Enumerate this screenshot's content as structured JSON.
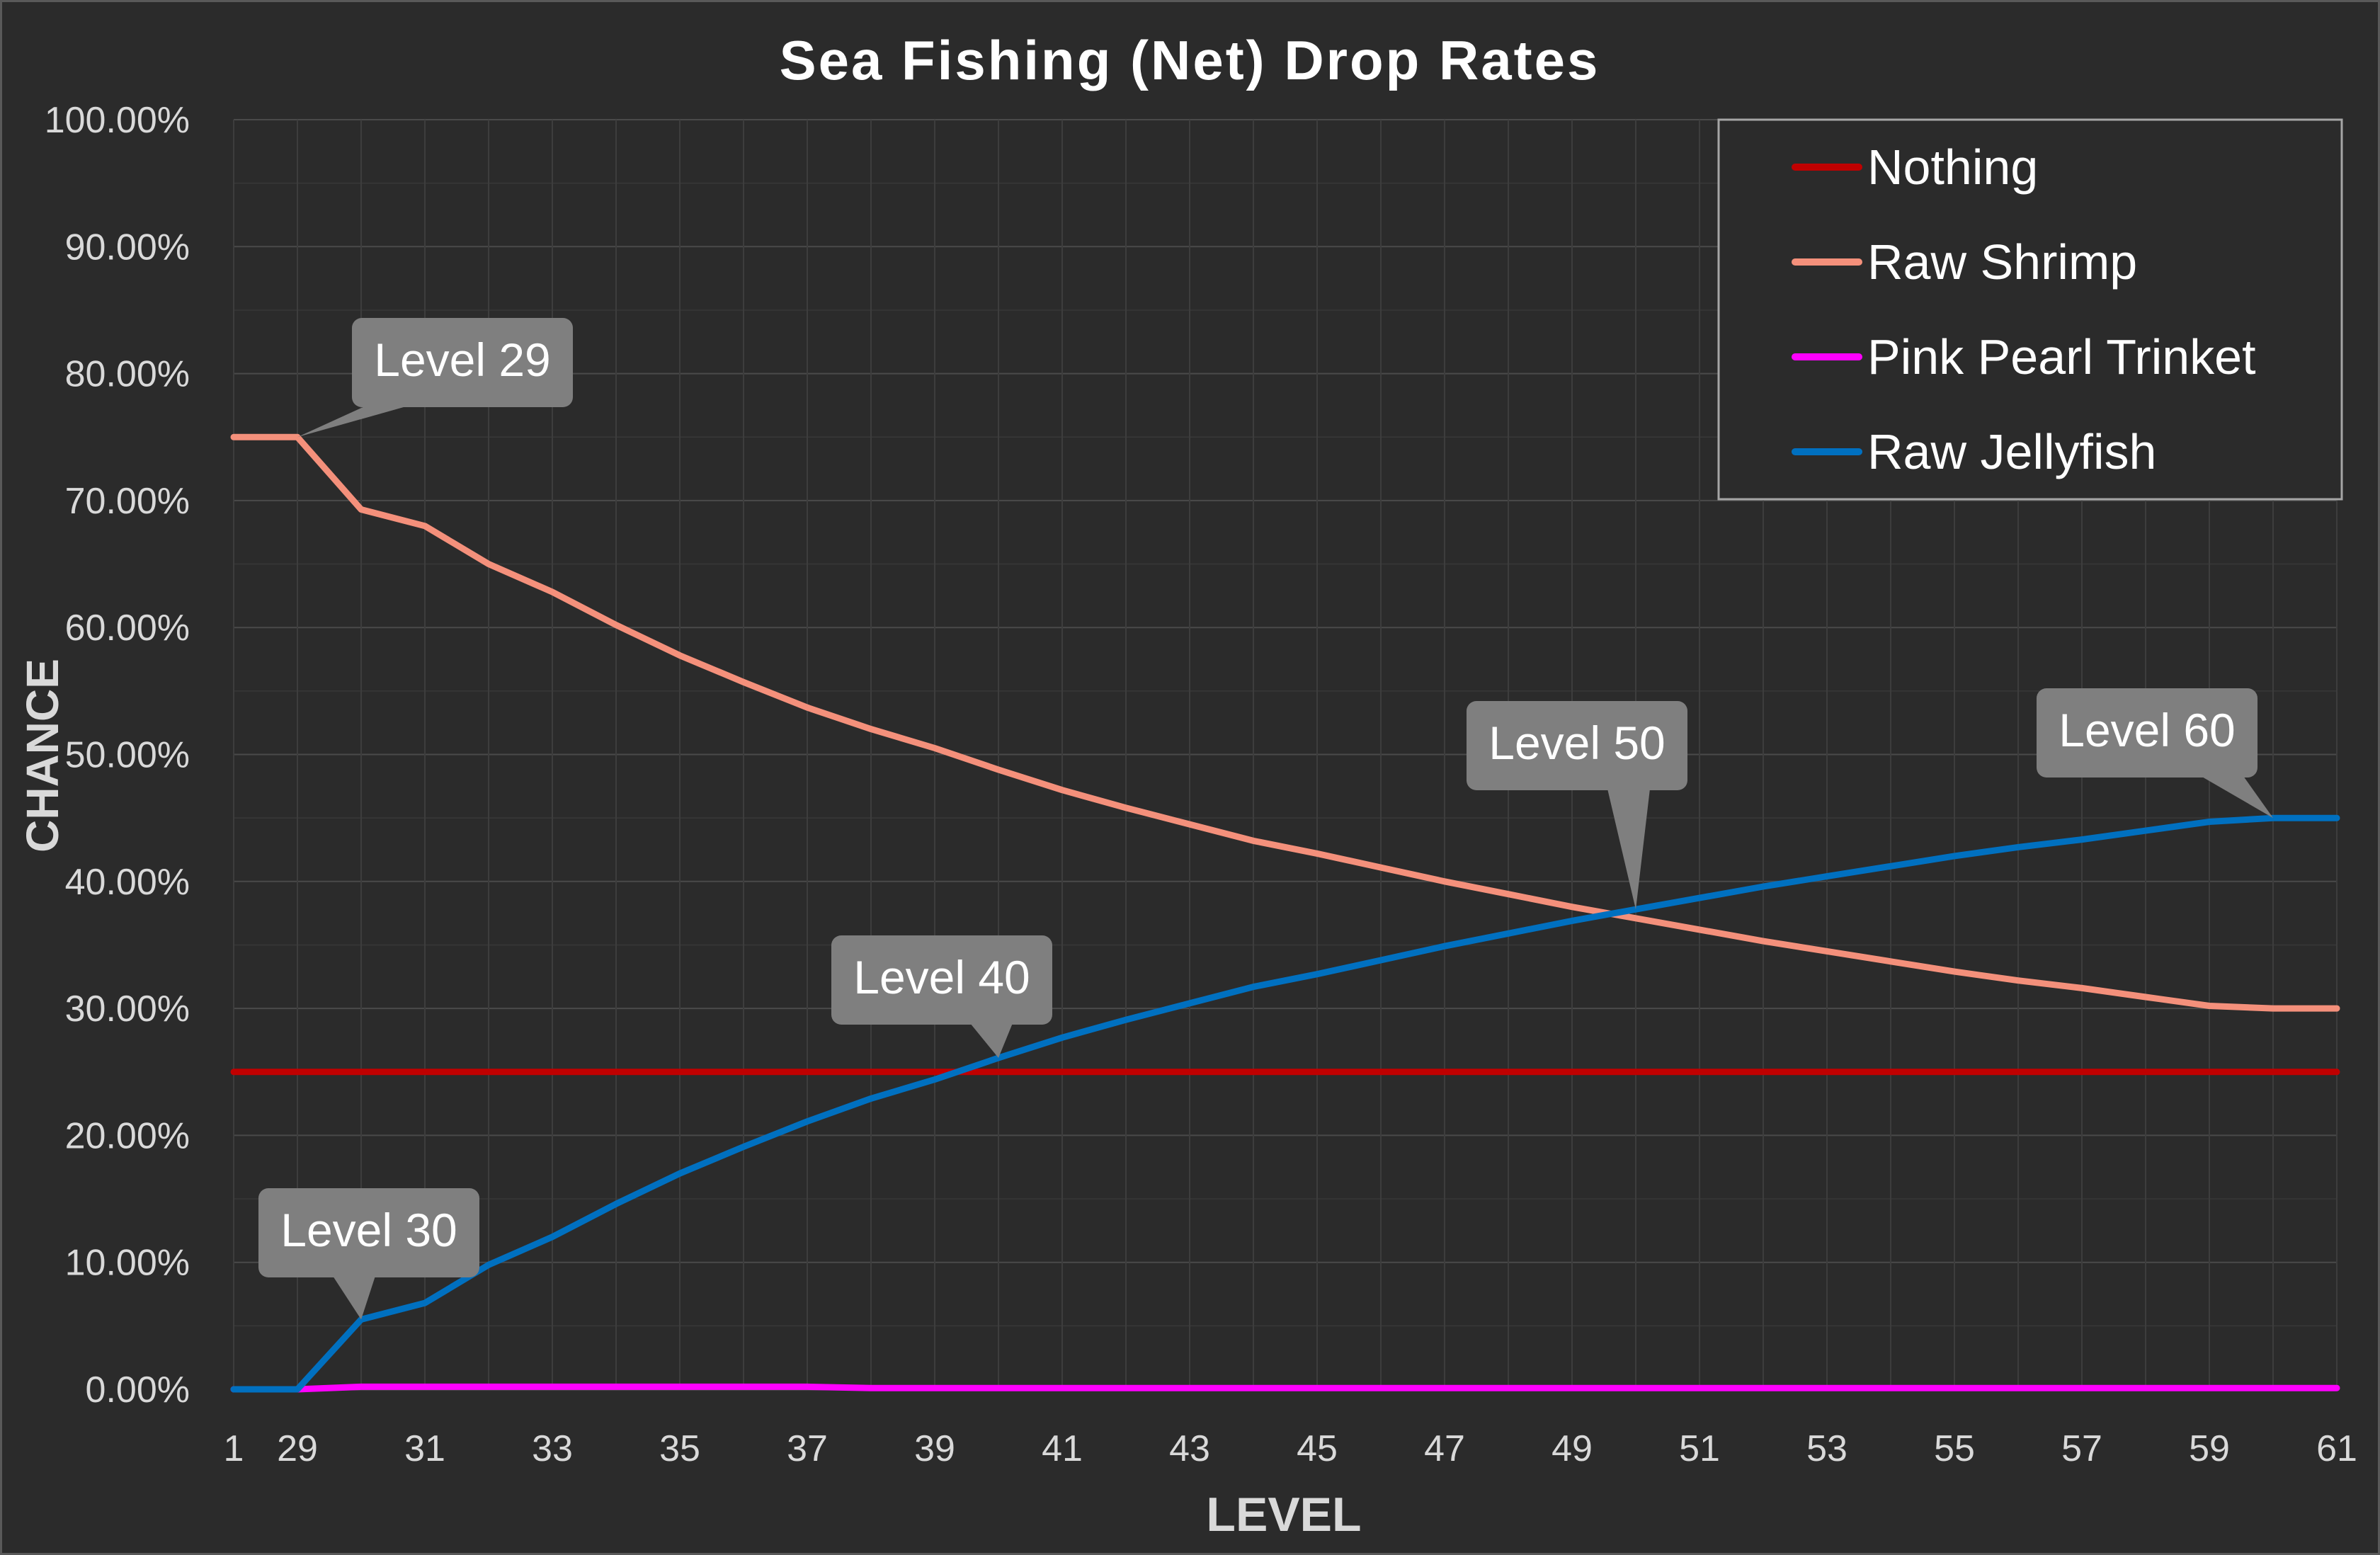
{
  "chart_data": {
    "type": "line",
    "title": "Sea Fishing (Net) Drop Rates",
    "xlabel": "LEVEL",
    "ylabel": "CHANCE",
    "x": [
      1,
      29,
      30,
      31,
      32,
      33,
      34,
      35,
      36,
      37,
      38,
      39,
      40,
      41,
      42,
      43,
      44,
      45,
      46,
      47,
      48,
      49,
      50,
      51,
      52,
      53,
      54,
      55,
      56,
      57,
      58,
      59,
      60,
      61
    ],
    "x_tick_labels": [
      "1",
      "29",
      "31",
      "33",
      "35",
      "37",
      "39",
      "41",
      "43",
      "45",
      "47",
      "49",
      "51",
      "53",
      "55",
      "57",
      "59",
      "61"
    ],
    "y_tick_labels": [
      "0.00%",
      "10.00%",
      "20.00%",
      "30.00%",
      "40.00%",
      "50.00%",
      "60.00%",
      "70.00%",
      "80.00%",
      "90.00%",
      "100.00%"
    ],
    "ylim": [
      0,
      100
    ],
    "grid": true,
    "legend_position": "top-right",
    "series": [
      {
        "name": "Nothing",
        "color": "#c00000",
        "values": [
          25,
          25,
          25,
          25,
          25,
          25,
          25,
          25,
          25,
          25,
          25,
          25,
          25,
          25,
          25,
          25,
          25,
          25,
          25,
          25,
          25,
          25,
          25,
          25,
          25,
          25,
          25,
          25,
          25,
          25,
          25,
          25,
          25,
          25
        ]
      },
      {
        "name": "Raw Shrimp",
        "color": "#f4907b",
        "values": [
          75,
          75,
          69.3,
          68,
          65,
          62.8,
          60.2,
          57.8,
          55.7,
          53.7,
          52,
          50.5,
          48.8,
          47.2,
          45.8,
          44.5,
          43.2,
          42.2,
          41.1,
          40,
          39,
          38,
          37.1,
          36.2,
          35.3,
          34.5,
          33.7,
          32.9,
          32.2,
          31.6,
          30.9,
          30.2,
          30,
          30
        ]
      },
      {
        "name": "Pink Pearl Trinket",
        "color": "#ff00ff",
        "values": [
          0,
          0,
          0.2,
          0.2,
          0.2,
          0.2,
          0.2,
          0.2,
          0.2,
          0.2,
          0.1,
          0.1,
          0.1,
          0.1,
          0.1,
          0.1,
          0.1,
          0.1,
          0.1,
          0.1,
          0.1,
          0.1,
          0.1,
          0.1,
          0.1,
          0.1,
          0.1,
          0.1,
          0.1,
          0.1,
          0.1,
          0.1,
          0.1,
          0.1
        ]
      },
      {
        "name": "Raw Jellyfish",
        "color": "#0070c0",
        "values": [
          0,
          0,
          5.5,
          6.8,
          9.8,
          12,
          14.6,
          17,
          19.1,
          21.1,
          22.9,
          24.4,
          26.1,
          27.7,
          29.1,
          30.4,
          31.7,
          32.7,
          33.8,
          34.9,
          35.9,
          36.9,
          37.8,
          38.7,
          39.6,
          40.4,
          41.2,
          42,
          42.7,
          43.3,
          44,
          44.7,
          45,
          45
        ]
      }
    ],
    "annotations": [
      {
        "text": "Level 29",
        "series": "Raw Shrimp",
        "level": 29,
        "value": 75
      },
      {
        "text": "Level 30",
        "series": "Raw Jellyfish",
        "level": 30,
        "value": 5.5
      },
      {
        "text": "Level 40",
        "series": "Raw Jellyfish",
        "level": 40,
        "value": 26.1
      },
      {
        "text": "Level 50",
        "series": "Raw Jellyfish",
        "level": 50,
        "value": 37.8
      },
      {
        "text": "Level 60",
        "series": "Raw Jellyfish",
        "level": 60,
        "value": 45
      }
    ]
  }
}
